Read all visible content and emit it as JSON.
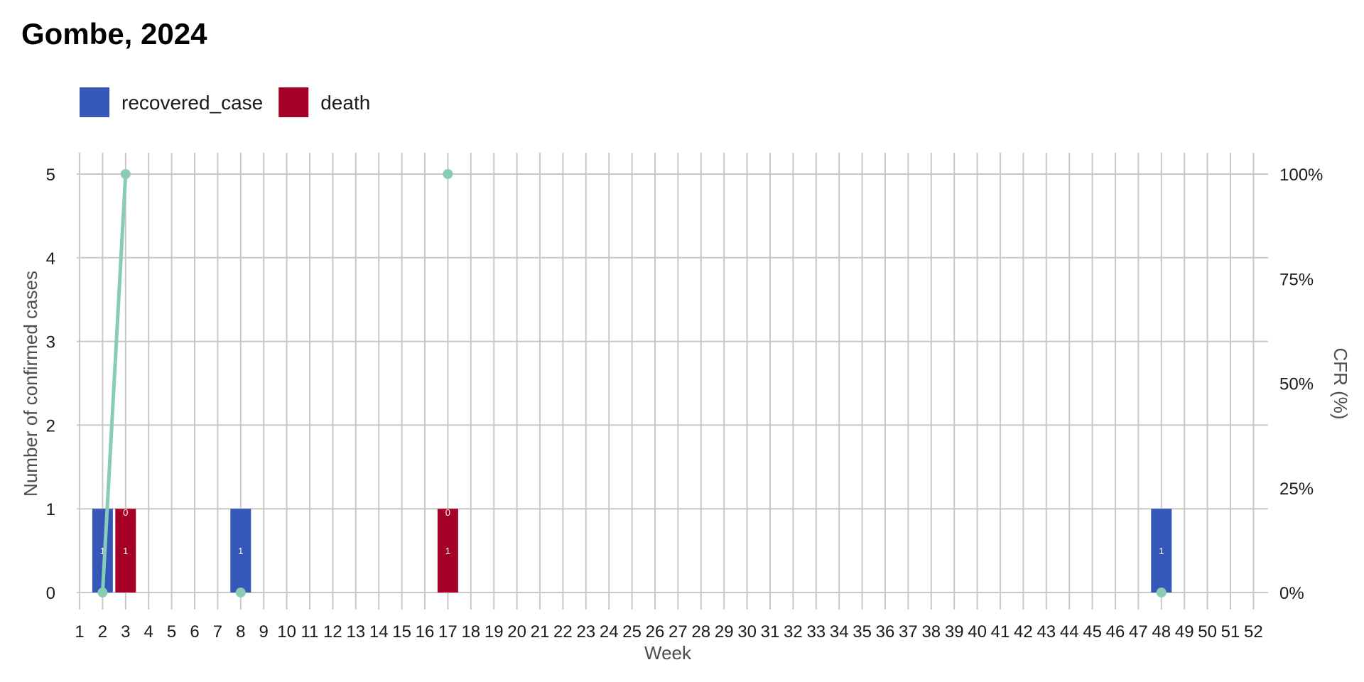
{
  "chart_data": {
    "type": "bar",
    "title": "Gombe, 2024",
    "xlabel": "Week",
    "ylabel": "Number of confirmed cases",
    "y2label": "CFR (%)",
    "ylim": [
      0,
      5
    ],
    "y2lim": [
      0,
      100
    ],
    "y_ticks": [
      "0",
      "1",
      "2",
      "3",
      "4",
      "5"
    ],
    "y2_ticks": [
      "0%",
      "25%",
      "50%",
      "75%",
      "100%"
    ],
    "categories": [
      1,
      2,
      3,
      4,
      5,
      6,
      7,
      8,
      9,
      10,
      11,
      12,
      13,
      14,
      15,
      16,
      17,
      18,
      19,
      20,
      21,
      22,
      23,
      24,
      25,
      26,
      27,
      28,
      29,
      30,
      31,
      32,
      33,
      34,
      35,
      36,
      37,
      38,
      39,
      40,
      41,
      42,
      43,
      44,
      45,
      46,
      47,
      48,
      49,
      50,
      51,
      52
    ],
    "legend_position": "top-left",
    "grid": true,
    "series": [
      {
        "name": "recovered_case",
        "color": "#3557B7",
        "points": [
          {
            "week": 2,
            "value": 1,
            "label": "1"
          },
          {
            "week": 8,
            "value": 1,
            "label": "1"
          },
          {
            "week": 48,
            "value": 1,
            "label": "1"
          }
        ]
      },
      {
        "name": "death",
        "color": "#A50026",
        "points": [
          {
            "week": 3,
            "value": 1,
            "label": "1",
            "top_label": "0"
          },
          {
            "week": 17,
            "value": 1,
            "label": "1",
            "top_label": "0"
          }
        ]
      }
    ],
    "cfr": {
      "color": "#88CBB7",
      "points": [
        {
          "week": 2,
          "value": 0
        },
        {
          "week": 3,
          "value": 100
        },
        {
          "week": 8,
          "value": 0
        },
        {
          "week": 17,
          "value": 100
        },
        {
          "week": 48,
          "value": 0
        }
      ],
      "line_segments": [
        [
          2,
          3
        ]
      ]
    }
  }
}
